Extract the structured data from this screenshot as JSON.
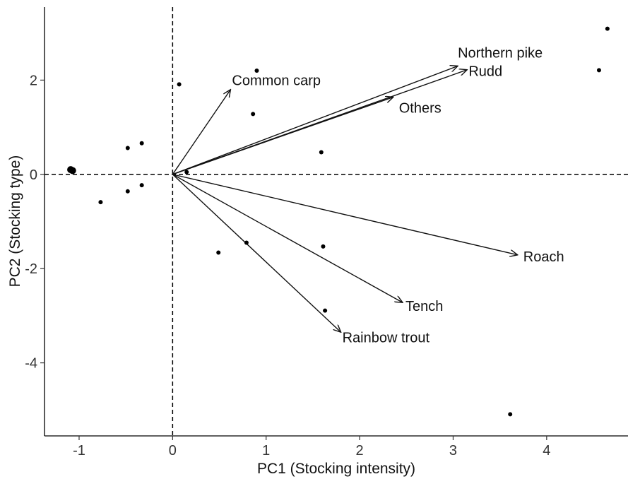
{
  "chart_data": {
    "type": "scatter",
    "title": "",
    "xlabel": "PC1 (Stocking intensity)",
    "ylabel": "PC2 (Stocking type)",
    "xlim": [
      -1.37,
      4.87
    ],
    "ylim": [
      -5.55,
      3.55
    ],
    "xticks": [
      -1,
      0,
      1,
      2,
      3,
      4
    ],
    "yticks": [
      2,
      0,
      -2,
      -4
    ],
    "xtick_labels": [
      "-1",
      "0",
      "1",
      "2",
      "3",
      "4"
    ],
    "ytick_labels": [
      "2",
      "0",
      "-2",
      "-4"
    ],
    "grid": false,
    "reference_lines": {
      "x": 0,
      "y": 0,
      "style": "dashed"
    },
    "points": [
      {
        "x": -1.07,
        "y": 0.08,
        "large": true
      },
      {
        "x": -1.09,
        "y": 0.1,
        "large": true
      },
      {
        "x": -0.77,
        "y": -0.59
      },
      {
        "x": -0.48,
        "y": 0.56
      },
      {
        "x": -0.48,
        "y": -0.36
      },
      {
        "x": -0.33,
        "y": 0.66
      },
      {
        "x": -0.33,
        "y": -0.23
      },
      {
        "x": 0.07,
        "y": 1.91
      },
      {
        "x": 0.15,
        "y": 0.05
      },
      {
        "x": 0.49,
        "y": -1.66
      },
      {
        "x": 0.79,
        "y": -1.45
      },
      {
        "x": 0.86,
        "y": 1.28
      },
      {
        "x": 0.9,
        "y": 2.2
      },
      {
        "x": 1.59,
        "y": 0.47
      },
      {
        "x": 1.61,
        "y": -1.53
      },
      {
        "x": 1.63,
        "y": -2.89
      },
      {
        "x": 3.61,
        "y": -5.09
      },
      {
        "x": 4.56,
        "y": 2.21
      },
      {
        "x": 4.65,
        "y": 3.09
      }
    ],
    "vectors": [
      {
        "label": "Common carp",
        "x": 0.62,
        "y": 1.8
      },
      {
        "label": "Northern pike",
        "x": 3.05,
        "y": 2.3
      },
      {
        "label": "Rudd",
        "x": 3.15,
        "y": 2.22
      },
      {
        "label": "Others",
        "x": 2.36,
        "y": 1.64
      },
      {
        "label": "Roach",
        "x": 3.69,
        "y": -1.71
      },
      {
        "label": "Tench",
        "x": 2.46,
        "y": -2.72
      },
      {
        "label": "Rainbow trout",
        "x": 1.8,
        "y": -3.35
      }
    ]
  }
}
